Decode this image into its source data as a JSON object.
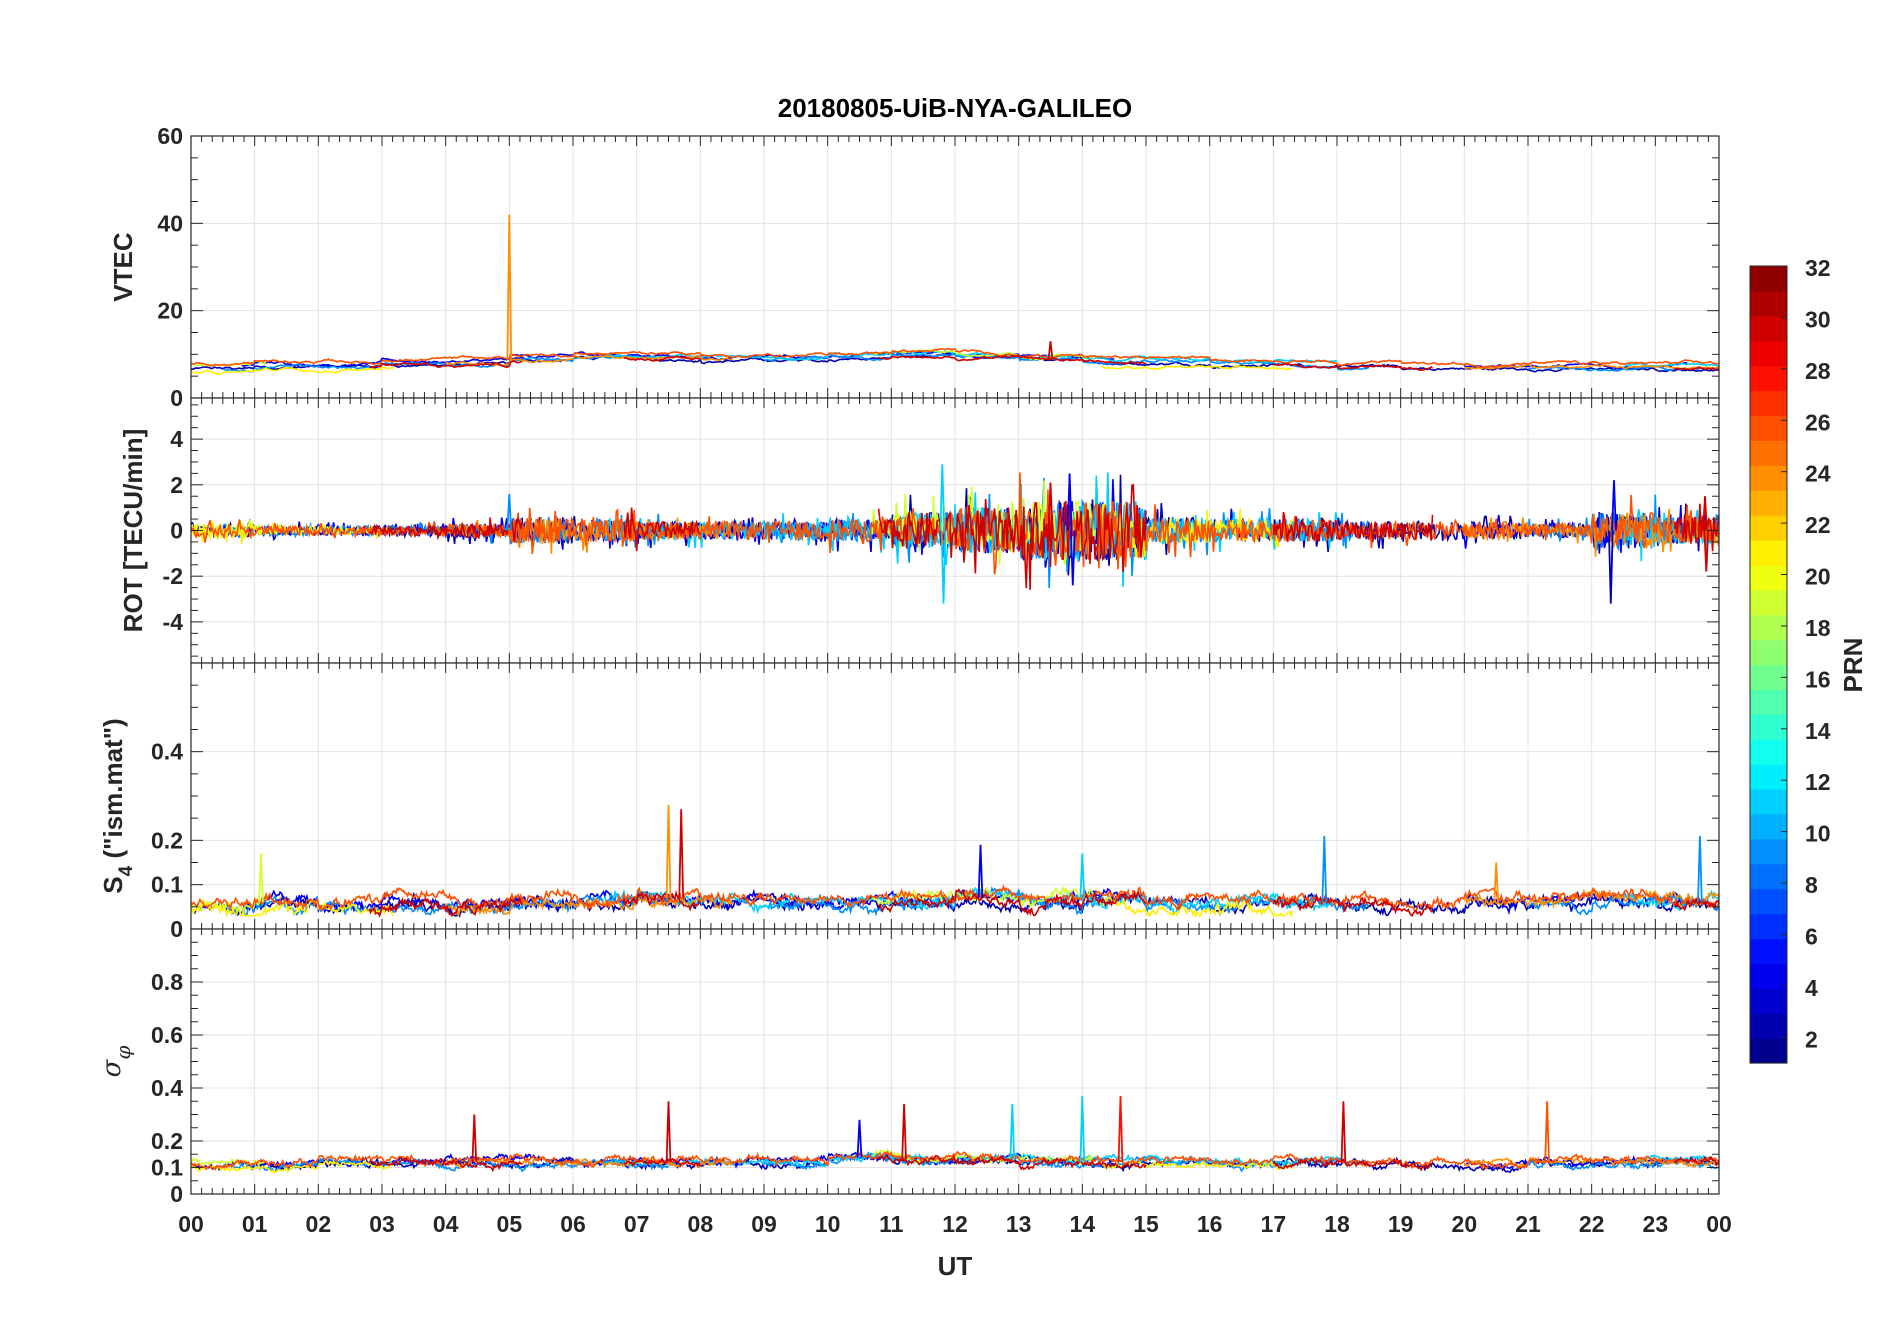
{
  "chart_data": {
    "type": "line",
    "title": "20180805-UiB-NYA-GALILEO",
    "xlabel": "UT",
    "xlim": [
      0,
      24
    ],
    "xticklabels": [
      "00",
      "01",
      "02",
      "03",
      "04",
      "05",
      "06",
      "07",
      "08",
      "09",
      "10",
      "11",
      "12",
      "13",
      "14",
      "15",
      "16",
      "17",
      "18",
      "19",
      "20",
      "21",
      "22",
      "23",
      "00"
    ],
    "grid": true,
    "colorbar": {
      "label": "PRN",
      "colormap": "jet",
      "range": [
        1,
        32
      ],
      "ticklabels": [
        "2",
        "4",
        "6",
        "8",
        "10",
        "12",
        "14",
        "16",
        "18",
        "20",
        "22",
        "24",
        "26",
        "28",
        "30",
        "32"
      ],
      "tickvalues": [
        2,
        4,
        6,
        8,
        10,
        12,
        14,
        16,
        18,
        20,
        22,
        24,
        26,
        28,
        30,
        32
      ],
      "placement": "right"
    },
    "satellites": [
      {
        "prn": 2,
        "windows": [
          [
            0,
            24
          ]
        ]
      },
      {
        "prn": 4,
        "windows": [
          [
            0.8,
            14.5
          ],
          [
            20,
            23.5
          ]
        ]
      },
      {
        "prn": 9,
        "windows": [
          [
            0.5,
            7.5
          ],
          [
            9,
            18.5
          ],
          [
            21,
            24
          ]
        ]
      },
      {
        "prn": 11,
        "windows": [
          [
            6.5,
            18
          ],
          [
            22.5,
            24
          ]
        ]
      },
      {
        "prn": 19,
        "windows": [
          [
            0,
            1.2
          ],
          [
            10.7,
            14.2
          ]
        ]
      },
      {
        "prn": 21,
        "windows": [
          [
            0,
            3.2
          ],
          [
            14.3,
            17.3
          ]
        ]
      },
      {
        "prn": 24,
        "windows": [
          [
            4,
            8.5
          ],
          [
            20,
            24
          ]
        ]
      },
      {
        "prn": 26,
        "windows": [
          [
            0,
            24
          ]
        ]
      },
      {
        "prn": 30,
        "windows": [
          [
            2.8,
            5.2
          ],
          [
            6.8,
            8
          ],
          [
            10.8,
            15
          ],
          [
            17,
            19.5
          ],
          [
            23.3,
            24
          ]
        ]
      }
    ],
    "panels": [
      {
        "name": "vtec",
        "ylabel": "VTEC",
        "ylim": [
          0,
          60
        ],
        "yticks": [
          0,
          20,
          40,
          60
        ],
        "yticklabels": [
          "0",
          "20",
          "40",
          "60"
        ],
        "hourly_level": [
          7,
          7.5,
          7.5,
          8,
          8,
          9,
          9.5,
          9.5,
          9,
          9,
          9.5,
          10,
          9.5,
          9,
          8.5,
          8.5,
          8,
          8,
          7.5,
          7,
          7,
          7,
          7,
          7,
          7
        ],
        "noise": 0.35,
        "spikes": [
          {
            "prn": 24,
            "t": 5.0,
            "value": 42
          },
          {
            "prn": 30,
            "t": 13.5,
            "value": 13
          }
        ]
      },
      {
        "name": "rot",
        "ylabel": "ROT [TECU/min]",
        "ylim": [
          -5.8,
          5.8
        ],
        "yticks": [
          -4,
          -2,
          0,
          2,
          4
        ],
        "yticklabels": [
          "-4",
          "-2",
          "0",
          "2",
          "4"
        ],
        "hourly_level": [
          0,
          0,
          0,
          0,
          0,
          0,
          0,
          0,
          0,
          0,
          0,
          0,
          0,
          0,
          0,
          0,
          0,
          0,
          0,
          0,
          0,
          0,
          0,
          0,
          0
        ],
        "hourly_noise": [
          0.3,
          0.2,
          0.2,
          0.2,
          0.3,
          0.6,
          0.5,
          0.4,
          0.4,
          0.4,
          0.5,
          0.8,
          1.0,
          1.3,
          1.3,
          0.6,
          0.5,
          0.5,
          0.4,
          0.4,
          0.4,
          0.3,
          0.8,
          0.6,
          0.6
        ],
        "spikes": [
          {
            "prn": 11,
            "t": 11.8,
            "value": 2.9
          },
          {
            "prn": 11,
            "t": 11.82,
            "value": -3.2
          },
          {
            "prn": 30,
            "t": 13.5,
            "value": 2.1
          },
          {
            "prn": 4,
            "t": 13.8,
            "value": 2.5
          },
          {
            "prn": 4,
            "t": 13.85,
            "value": -2.4
          },
          {
            "prn": 2,
            "t": 22.3,
            "value": -3.2
          },
          {
            "prn": 4,
            "t": 22.35,
            "value": 2.2
          },
          {
            "prn": 30,
            "t": 23.8,
            "value": -1.8
          },
          {
            "prn": 30,
            "t": 23.78,
            "value": 1.5
          },
          {
            "prn": 9,
            "t": 5.0,
            "value": 1.6
          }
        ]
      },
      {
        "name": "s4",
        "ylabel": "S4 (\"ism.mat\")",
        "ylabel_main": "S",
        "ylabel_sub": "4",
        "ylabel_rest": " (\"ism.mat\")",
        "ylim": [
          0,
          0.6
        ],
        "yticks": [
          0,
          0.1,
          0.2,
          0.4
        ],
        "yticklabels": [
          "0",
          "0.1",
          "0.2",
          "0.4"
        ],
        "hourly_level": [
          0.05,
          0.06,
          0.05,
          0.06,
          0.05,
          0.06,
          0.06,
          0.07,
          0.06,
          0.06,
          0.06,
          0.06,
          0.07,
          0.06,
          0.07,
          0.06,
          0.06,
          0.06,
          0.06,
          0.05,
          0.06,
          0.06,
          0.07,
          0.06,
          0.06
        ],
        "noise": 0.012,
        "spikes": [
          {
            "prn": 19,
            "t": 1.1,
            "value": 0.17
          },
          {
            "prn": 24,
            "t": 7.5,
            "value": 0.28
          },
          {
            "prn": 30,
            "t": 7.7,
            "value": 0.27
          },
          {
            "prn": 4,
            "t": 12.4,
            "value": 0.19
          },
          {
            "prn": 11,
            "t": 14.0,
            "value": 0.17
          },
          {
            "prn": 9,
            "t": 17.8,
            "value": 0.21
          },
          {
            "prn": 9,
            "t": 23.7,
            "value": 0.21
          },
          {
            "prn": 24,
            "t": 20.5,
            "value": 0.15
          }
        ]
      },
      {
        "name": "sigma-phi",
        "ylabel": "σφ",
        "ylabel_main": "σ",
        "ylabel_sub": "φ",
        "ylim": [
          0,
          1
        ],
        "yticks": [
          0,
          0.1,
          0.2,
          0.4,
          0.6,
          0.8
        ],
        "yticklabels": [
          "0",
          "0.1",
          "0.2",
          "0.4",
          "0.6",
          "0.8"
        ],
        "hourly_level": [
          0.11,
          0.11,
          0.12,
          0.12,
          0.12,
          0.12,
          0.12,
          0.12,
          0.12,
          0.12,
          0.14,
          0.13,
          0.13,
          0.12,
          0.12,
          0.12,
          0.12,
          0.12,
          0.12,
          0.11,
          0.11,
          0.12,
          0.12,
          0.12,
          0.12
        ],
        "noise": 0.012,
        "spikes": [
          {
            "prn": 30,
            "t": 4.45,
            "value": 0.3
          },
          {
            "prn": 30,
            "t": 7.5,
            "value": 0.35
          },
          {
            "prn": 30,
            "t": 11.2,
            "value": 0.34
          },
          {
            "prn": 11,
            "t": 12.9,
            "value": 0.34
          },
          {
            "prn": 11,
            "t": 14.0,
            "value": 0.37
          },
          {
            "prn": 28,
            "t": 14.6,
            "value": 0.37
          },
          {
            "prn": 30,
            "t": 18.1,
            "value": 0.35
          },
          {
            "prn": 26,
            "t": 21.3,
            "value": 0.35
          },
          {
            "prn": 4,
            "t": 10.5,
            "value": 0.28
          }
        ]
      }
    ]
  }
}
